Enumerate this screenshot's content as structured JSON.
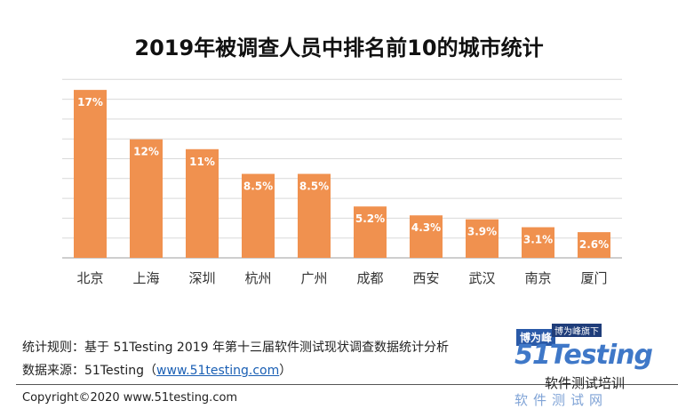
{
  "chart_data": {
    "type": "bar",
    "title": "2019年被调查人员中排名前10的城市统计",
    "categories": [
      "北京",
      "上海",
      "深圳",
      "杭州",
      "广州",
      "成都",
      "西安",
      "武汉",
      "南京",
      "厦门"
    ],
    "values": [
      17,
      12,
      11,
      8.5,
      8.5,
      5.2,
      4.3,
      3.9,
      3.1,
      2.6
    ],
    "value_labels": [
      "17%",
      "12%",
      "11%",
      "8.5%",
      "8.5%",
      "5.2%",
      "4.3%",
      "3.9%",
      "3.1%",
      "2.6%"
    ],
    "ylim": [
      0,
      18
    ],
    "grid": true,
    "bar_color": "#f0914f"
  },
  "notes": {
    "rules": "统计规则：基于 51Testing 2019 年第十三届软件测试现状调查数据统计分析",
    "source_prefix": "数据来源：51Testing（",
    "source_link": "www.51testing.com",
    "source_suffix": "）"
  },
  "copyright": "Copyright©2020 www.51testing.com",
  "logo": {
    "badge1": "博为峰",
    "badge2": "博为峰旗下",
    "brand": "51Testing",
    "wechat": "软件测试培训",
    "subtitle": "软件测试网"
  }
}
